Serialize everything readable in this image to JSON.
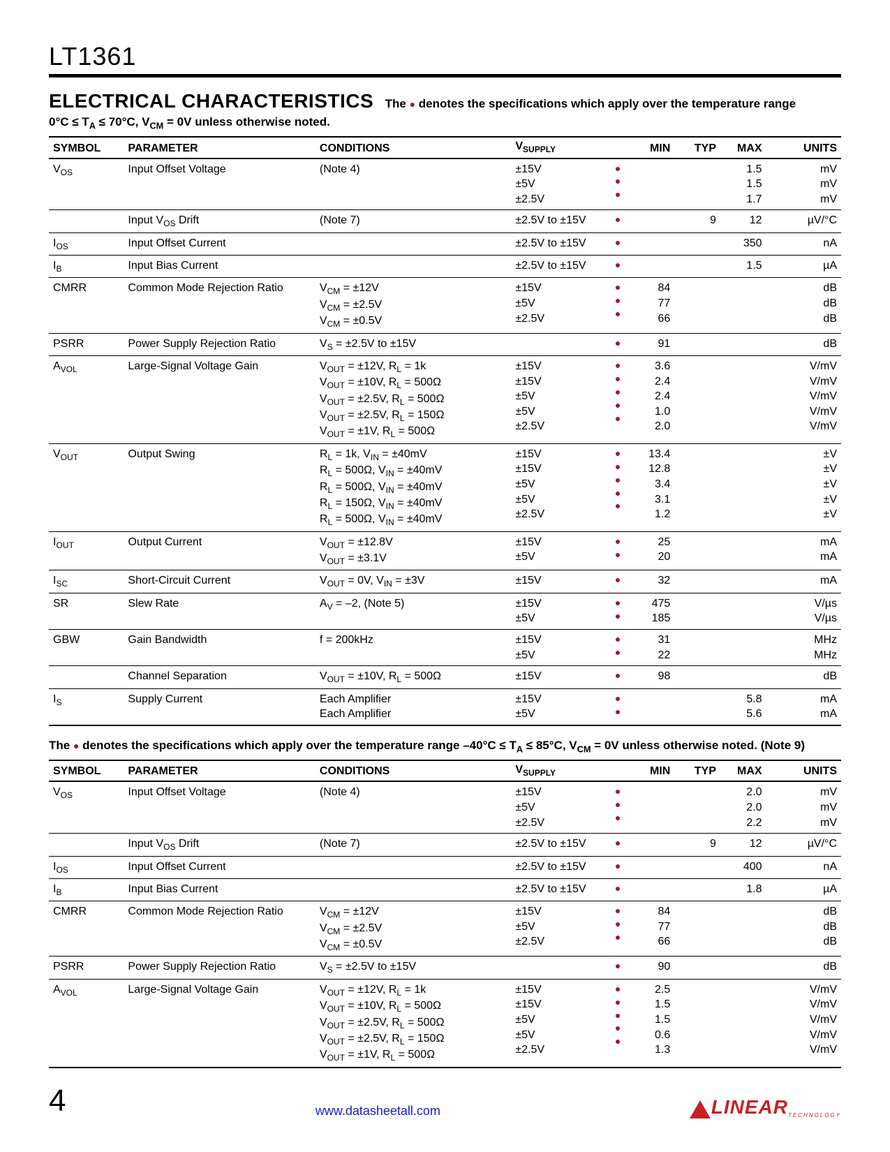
{
  "header": {
    "part_number": "LT1361",
    "section_title": "ELECTRICAL CHARACTERISTICS",
    "dot_note_prefix": "The ",
    "dot_note_suffix": " denotes the specifications which apply over the temperature range",
    "conditions_note": "0°C ≤ T_A ≤ 70°C, V_CM = 0V unless otherwise noted."
  },
  "table_headers": {
    "symbol": "SYMBOL",
    "parameter": "PARAMETER",
    "conditions": "CONDITIONS",
    "vsupply": "V_SUPPLY",
    "min": "MIN",
    "typ": "TYP",
    "max": "MAX",
    "units": "UNITS"
  },
  "table1": [
    {
      "symbol": "V_OS",
      "param": "Input Offset Voltage",
      "cond": [
        "(Note 4)"
      ],
      "vsup": [
        "±15V",
        "±5V",
        "±2.5V"
      ],
      "dot": [
        "●",
        "●",
        "●"
      ],
      "min": [
        "",
        "",
        ""
      ],
      "typ": [
        "",
        "",
        ""
      ],
      "max": [
        "1.5",
        "1.5",
        "1.7"
      ],
      "units": [
        "mV",
        "mV",
        "mV"
      ]
    },
    {
      "symbol": "",
      "param": "Input V_OS Drift",
      "cond": [
        "(Note 7)"
      ],
      "vsup": [
        "±2.5V to ±15V"
      ],
      "dot": [
        "●"
      ],
      "min": [
        ""
      ],
      "typ": [
        "9"
      ],
      "max": [
        "12"
      ],
      "units": [
        "µV/°C"
      ]
    },
    {
      "symbol": "I_OS",
      "param": "Input Offset Current",
      "cond": [
        ""
      ],
      "vsup": [
        "±2.5V to ±15V"
      ],
      "dot": [
        "●"
      ],
      "min": [
        ""
      ],
      "typ": [
        ""
      ],
      "max": [
        "350"
      ],
      "units": [
        "nA"
      ]
    },
    {
      "symbol": "I_B",
      "param": "Input Bias Current",
      "cond": [
        ""
      ],
      "vsup": [
        "±2.5V to ±15V"
      ],
      "dot": [
        "●"
      ],
      "min": [
        ""
      ],
      "typ": [
        ""
      ],
      "max": [
        "1.5"
      ],
      "units": [
        "µA"
      ]
    },
    {
      "symbol": "CMRR",
      "param": "Common Mode Rejection Ratio",
      "cond": [
        "V_CM = ±12V",
        "V_CM = ±2.5V",
        "V_CM = ±0.5V"
      ],
      "vsup": [
        "±15V",
        "±5V",
        "±2.5V"
      ],
      "dot": [
        "●",
        "●",
        "●"
      ],
      "min": [
        "84",
        "77",
        "66"
      ],
      "typ": [
        "",
        "",
        ""
      ],
      "max": [
        "",
        "",
        ""
      ],
      "units": [
        "dB",
        "dB",
        "dB"
      ]
    },
    {
      "symbol": "PSRR",
      "param": "Power Supply Rejection Ratio",
      "cond": [
        "V_S = ±2.5V to ±15V"
      ],
      "vsup": [
        ""
      ],
      "dot": [
        "●"
      ],
      "min": [
        "91"
      ],
      "typ": [
        ""
      ],
      "max": [
        ""
      ],
      "units": [
        "dB"
      ]
    },
    {
      "symbol": "A_VOL",
      "param": "Large-Signal Voltage Gain",
      "cond": [
        "V_OUT = ±12V, R_L = 1k",
        "V_OUT = ±10V, R_L = 500Ω",
        "V_OUT = ±2.5V, R_L = 500Ω",
        "V_OUT = ±2.5V, R_L = 150Ω",
        "V_OUT = ±1V, R_L = 500Ω"
      ],
      "vsup": [
        "±15V",
        "±15V",
        "±5V",
        "±5V",
        "±2.5V"
      ],
      "dot": [
        "●",
        "●",
        "●",
        "●",
        "●"
      ],
      "min": [
        "3.6",
        "2.4",
        "2.4",
        "1.0",
        "2.0"
      ],
      "typ": [
        "",
        "",
        "",
        "",
        ""
      ],
      "max": [
        "",
        "",
        "",
        "",
        ""
      ],
      "units": [
        "V/mV",
        "V/mV",
        "V/mV",
        "V/mV",
        "V/mV"
      ]
    },
    {
      "symbol": "V_OUT",
      "param": "Output Swing",
      "cond": [
        "R_L = 1k, V_IN = ±40mV",
        "R_L = 500Ω, V_IN = ±40mV",
        "R_L = 500Ω, V_IN = ±40mV",
        "R_L = 150Ω, V_IN = ±40mV",
        "R_L = 500Ω, V_IN = ±40mV"
      ],
      "vsup": [
        "±15V",
        "±15V",
        "±5V",
        "±5V",
        "±2.5V"
      ],
      "dot": [
        "●",
        "●",
        "●",
        "●",
        "●"
      ],
      "min": [
        "13.4",
        "12.8",
        "3.4",
        "3.1",
        "1.2"
      ],
      "typ": [
        "",
        "",
        "",
        "",
        ""
      ],
      "max": [
        "",
        "",
        "",
        "",
        ""
      ],
      "units": [
        "±V",
        "±V",
        "±V",
        "±V",
        "±V"
      ]
    },
    {
      "symbol": "I_OUT",
      "param": "Output Current",
      "cond": [
        "V_OUT = ±12.8V",
        "V_OUT = ±3.1V"
      ],
      "vsup": [
        "±15V",
        "±5V"
      ],
      "dot": [
        "●",
        "●"
      ],
      "min": [
        "25",
        "20"
      ],
      "typ": [
        "",
        ""
      ],
      "max": [
        "",
        ""
      ],
      "units": [
        "mA",
        "mA"
      ]
    },
    {
      "symbol": "I_SC",
      "param": "Short-Circuit Current",
      "cond": [
        "V_OUT = 0V, V_IN = ±3V"
      ],
      "vsup": [
        "±15V"
      ],
      "dot": [
        "●"
      ],
      "min": [
        "32"
      ],
      "typ": [
        ""
      ],
      "max": [
        ""
      ],
      "units": [
        "mA"
      ]
    },
    {
      "symbol": "SR",
      "param": "Slew Rate",
      "cond": [
        "A_V = –2, (Note 5)"
      ],
      "vsup": [
        "±15V",
        "±5V"
      ],
      "dot": [
        "●",
        "●"
      ],
      "min": [
        "475",
        "185"
      ],
      "typ": [
        "",
        ""
      ],
      "max": [
        "",
        ""
      ],
      "units": [
        "V/µs",
        "V/µs"
      ]
    },
    {
      "symbol": "GBW",
      "param": "Gain Bandwidth",
      "cond": [
        "f = 200kHz"
      ],
      "vsup": [
        "±15V",
        "±5V"
      ],
      "dot": [
        "●",
        "●"
      ],
      "min": [
        "31",
        "22"
      ],
      "typ": [
        "",
        ""
      ],
      "max": [
        "",
        ""
      ],
      "units": [
        "MHz",
        "MHz"
      ]
    },
    {
      "symbol": "",
      "param": "Channel Separation",
      "cond": [
        "V_OUT = ±10V, R_L = 500Ω"
      ],
      "vsup": [
        "±15V"
      ],
      "dot": [
        "●"
      ],
      "min": [
        "98"
      ],
      "typ": [
        ""
      ],
      "max": [
        ""
      ],
      "units": [
        "dB"
      ]
    },
    {
      "symbol": "I_S",
      "param": "Supply Current",
      "cond": [
        "Each Amplifier",
        "Each Amplifier"
      ],
      "vsup": [
        "±15V",
        "±5V"
      ],
      "dot": [
        "●",
        "●"
      ],
      "min": [
        "",
        ""
      ],
      "typ": [
        "",
        ""
      ],
      "max": [
        "5.8",
        "5.6"
      ],
      "units": [
        "mA",
        "mA"
      ]
    }
  ],
  "mid_note": "The ● denotes the specifications which apply over the temperature range –40°C ≤ T_A ≤ 85°C, V_CM = 0V unless otherwise noted. (Note 9)",
  "table2": [
    {
      "symbol": "V_OS",
      "param": "Input Offset Voltage",
      "cond": [
        "(Note 4)"
      ],
      "vsup": [
        "±15V",
        "±5V",
        "±2.5V"
      ],
      "dot": [
        "●",
        "●",
        "●"
      ],
      "min": [
        "",
        "",
        ""
      ],
      "typ": [
        "",
        "",
        ""
      ],
      "max": [
        "2.0",
        "2.0",
        "2.2"
      ],
      "units": [
        "mV",
        "mV",
        "mV"
      ]
    },
    {
      "symbol": "",
      "param": "Input V_OS Drift",
      "cond": [
        "(Note 7)"
      ],
      "vsup": [
        "±2.5V to ±15V"
      ],
      "dot": [
        "●"
      ],
      "min": [
        ""
      ],
      "typ": [
        "9"
      ],
      "max": [
        "12"
      ],
      "units": [
        "µV/°C"
      ]
    },
    {
      "symbol": "I_OS",
      "param": "Input Offset Current",
      "cond": [
        ""
      ],
      "vsup": [
        "±2.5V to ±15V"
      ],
      "dot": [
        "●"
      ],
      "min": [
        ""
      ],
      "typ": [
        ""
      ],
      "max": [
        "400"
      ],
      "units": [
        "nA"
      ]
    },
    {
      "symbol": "I_B",
      "param": "Input Bias Current",
      "cond": [
        ""
      ],
      "vsup": [
        "±2.5V to ±15V"
      ],
      "dot": [
        "●"
      ],
      "min": [
        ""
      ],
      "typ": [
        ""
      ],
      "max": [
        "1.8"
      ],
      "units": [
        "µA"
      ]
    },
    {
      "symbol": "CMRR",
      "param": "Common Mode Rejection Ratio",
      "cond": [
        "V_CM = ±12V",
        "V_CM = ±2.5V",
        "V_CM = ±0.5V"
      ],
      "vsup": [
        "±15V",
        "±5V",
        "±2.5V"
      ],
      "dot": [
        "●",
        "●",
        "●"
      ],
      "min": [
        "84",
        "77",
        "66"
      ],
      "typ": [
        "",
        "",
        ""
      ],
      "max": [
        "",
        "",
        ""
      ],
      "units": [
        "dB",
        "dB",
        "dB"
      ]
    },
    {
      "symbol": "PSRR",
      "param": "Power Supply Rejection Ratio",
      "cond": [
        "V_S = ±2.5V to ±15V"
      ],
      "vsup": [
        ""
      ],
      "dot": [
        "●"
      ],
      "min": [
        "90"
      ],
      "typ": [
        ""
      ],
      "max": [
        ""
      ],
      "units": [
        "dB"
      ]
    },
    {
      "symbol": "A_VOL",
      "param": "Large-Signal Voltage Gain",
      "cond": [
        "V_OUT = ±12V, R_L = 1k",
        "V_OUT = ±10V, R_L = 500Ω",
        "V_OUT = ±2.5V, R_L = 500Ω",
        "V_OUT = ±2.5V, R_L = 150Ω",
        "V_OUT = ±1V, R_L = 500Ω"
      ],
      "vsup": [
        "±15V",
        "±15V",
        "±5V",
        "±5V",
        "±2.5V"
      ],
      "dot": [
        "●",
        "●",
        "●",
        "●",
        "●"
      ],
      "min": [
        "2.5",
        "1.5",
        "1.5",
        "0.6",
        "1.3"
      ],
      "typ": [
        "",
        "",
        "",
        "",
        ""
      ],
      "max": [
        "",
        "",
        "",
        "",
        ""
      ],
      "units": [
        "V/mV",
        "V/mV",
        "V/mV",
        "V/mV",
        "V/mV"
      ]
    }
  ],
  "footer": {
    "page_num": "4",
    "url": "www.datasheetall.com",
    "logo_main": "LINEAR",
    "logo_sub": "TECHNOLOGY"
  }
}
